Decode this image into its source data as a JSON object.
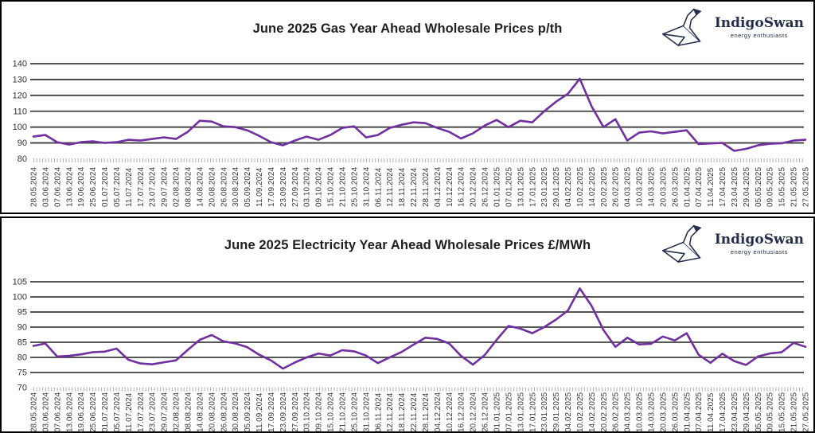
{
  "brand": {
    "name": "IndigoSwan",
    "tagline": "energy enthusiasts",
    "color": "#26304d"
  },
  "colors": {
    "line": "#7030A0",
    "grid": "#3f3f3f",
    "tick_comb": "#b0b0b0",
    "axis_text": "#333333",
    "title_text": "#1f1f1f",
    "panel_border": "#000000",
    "background": "#ffffff"
  },
  "chart_data": [
    {
      "type": "line",
      "title": "June 2025 Gas Year Ahead Wholesale Prices p/th",
      "unit": "p/th",
      "xlabel": "",
      "ylabel": "",
      "ylim": [
        80,
        140
      ],
      "y_ticks": [
        140,
        130,
        120,
        110,
        100,
        90,
        80
      ],
      "grid": "on",
      "legend_position": "none",
      "categories": [
        "28.05.2024",
        "03.06.2024",
        "07.06.2024",
        "13.06.2024",
        "19.06.2024",
        "25.06.2024",
        "01.07.2024",
        "05.07.2024",
        "11.07.2024",
        "17.07.2024",
        "23.07.2024",
        "29.07.2024",
        "02.08.2024",
        "08.08.2024",
        "14.08.2024",
        "20.08.2024",
        "26.08.2024",
        "30.08.2024",
        "05.09.2024",
        "11.09.2024",
        "17.09.2024",
        "23.09.2024",
        "27.09.2024",
        "03.10.2024",
        "09.10.2024",
        "15.10.2024",
        "21.10.2024",
        "25.10.2024",
        "31.10.2024",
        "06.11.2024",
        "12.11.2024",
        "18.11.2024",
        "22.11.2024",
        "28.11.2024",
        "04.12.2024",
        "10.12.2024",
        "16.12.2024",
        "20.12.2024",
        "26.12.2024",
        "01.01.2025",
        "07.01.2025",
        "13.01.2025",
        "17.01.2025",
        "23.01.2025",
        "29.01.2025",
        "04.02.2025",
        "10.02.2025",
        "14.02.2025",
        "20.02.2025",
        "26.02.2025",
        "04.03.2025",
        "10.03.2025",
        "14.03.2025",
        "20.03.2025",
        "26.03.2025",
        "01.04.2025",
        "07.04.2025",
        "11.04.2025",
        "17.04.2025",
        "23.04.2025",
        "29.04.2025",
        "05.05.2025",
        "09.05.2025",
        "15.05.2025",
        "21.05.2025",
        "27.05.2025"
      ],
      "values": [
        94,
        95,
        90.5,
        89,
        90.5,
        91,
        90,
        90.5,
        92,
        91.5,
        92.5,
        93.5,
        92.5,
        97,
        104,
        103.5,
        100.5,
        100,
        98,
        94.5,
        90.5,
        88.5,
        91.5,
        94,
        92,
        95,
        99.5,
        100.5,
        93.5,
        95,
        99.5,
        101.5,
        103,
        102.5,
        99.5,
        97,
        92.8,
        96,
        101,
        104.5,
        100,
        104,
        103,
        110,
        116,
        121,
        130.5,
        113,
        100,
        105,
        91.5,
        96.5,
        97.3,
        96,
        97,
        98,
        89.3,
        89.7,
        90,
        85,
        86.3,
        88.5,
        89.5,
        89.8,
        91.5,
        92
      ]
    },
    {
      "type": "line",
      "title": "June 2025 Electricity Year Ahead Wholesale Prices £/MWh",
      "unit": "£/MWh",
      "xlabel": "",
      "ylabel": "",
      "ylim": [
        70,
        105
      ],
      "y_ticks": [
        105,
        100,
        95,
        90,
        85,
        80,
        75,
        70
      ],
      "grid": "on",
      "legend_position": "none",
      "categories": [
        "28.05.2024",
        "03.06.2024",
        "07.06.2024",
        "13.06.2024",
        "19.06.2024",
        "25.06.2024",
        "01.07.2024",
        "05.07.2024",
        "11.07.2024",
        "17.07.2024",
        "23.07.2024",
        "29.07.2024",
        "02.08.2024",
        "08.08.2024",
        "14.08.2024",
        "20.08.2024",
        "26.08.2024",
        "30.08.2024",
        "05.09.2024",
        "11.09.2024",
        "17.09.2024",
        "23.09.2024",
        "27.09.2024",
        "03.10.2024",
        "09.10.2024",
        "15.10.2024",
        "21.10.2024",
        "25.10.2024",
        "31.10.2024",
        "06.11.2024",
        "12.11.2024",
        "18.11.2024",
        "22.11.2024",
        "28.11.2024",
        "04.12.2024",
        "10.12.2024",
        "16.12.2024",
        "20.12.2024",
        "26.12.2024",
        "01.01.2025",
        "07.01.2025",
        "13.01.2025",
        "17.01.2025",
        "23.01.2025",
        "29.01.2025",
        "04.02.2025",
        "10.02.2025",
        "14.02.2025",
        "20.02.2025",
        "26.02.2025",
        "04.03.2025",
        "10.03.2025",
        "14.03.2025",
        "20.03.2025",
        "26.03.2025",
        "01.04.2025",
        "07.04.2025",
        "11.04.2025",
        "17.04.2025",
        "23.04.2025",
        "29.04.2025",
        "05.05.2025",
        "09.05.2025",
        "15.05.2025",
        "21.05.2025",
        "27.05.2025"
      ],
      "values": [
        83.8,
        84.6,
        80.3,
        80.5,
        81,
        81.7,
        81.9,
        82.9,
        79.2,
        78,
        77.7,
        78.4,
        79,
        82.5,
        85.8,
        87.4,
        85.3,
        84.6,
        83.4,
        80.9,
        79,
        76.3,
        78.3,
        80,
        81.3,
        80.6,
        82.4,
        82,
        80.6,
        78.1,
        80,
        81.8,
        84.2,
        86.5,
        86.1,
        84.6,
        80.5,
        77.6,
        80.8,
        85.8,
        90.4,
        89.5,
        88,
        90,
        92.5,
        95.5,
        102.8,
        97,
        89,
        83.5,
        86.5,
        84.3,
        84.5,
        86.9,
        85.6,
        88,
        80.9,
        78.2,
        81.2,
        78.8,
        77.5,
        80.3,
        81.3,
        81.7,
        84.8,
        83.5
      ]
    }
  ]
}
